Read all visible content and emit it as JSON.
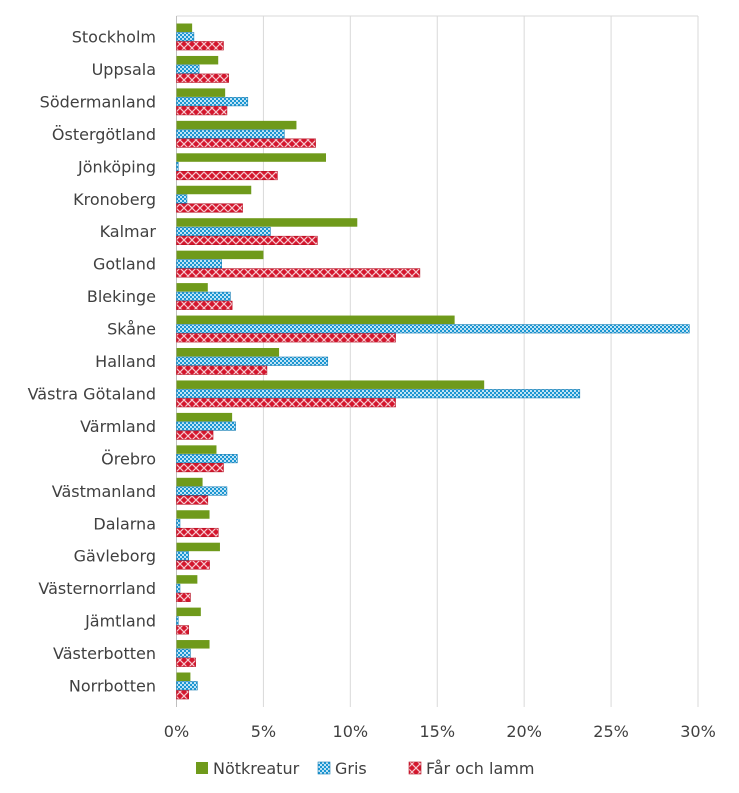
{
  "chart_data": {
    "type": "bar",
    "orientation": "horizontal",
    "title": "",
    "xlabel": "",
    "ylabel": "",
    "xlim": [
      0,
      30
    ],
    "x_ticks": [
      "0%",
      "5%",
      "10%",
      "15%",
      "20%",
      "25%",
      "30%"
    ],
    "grid": true,
    "legend_position": "bottom",
    "categories": [
      "Stockholm",
      "Uppsala",
      "Södermanland",
      "Östergötland",
      "Jönköping",
      "Kronoberg",
      "Kalmar",
      "Gotland",
      "Blekinge",
      "Skåne",
      "Halland",
      "Västra Götaland",
      "Värmland",
      "Örebro",
      "Västmanland",
      "Dalarna",
      "Gävleborg",
      "Västernorrland",
      "Jämtland",
      "Västerbotten",
      "Norrbotten"
    ],
    "series": [
      {
        "name": "Nötkreatur",
        "color": "#6f9a1b",
        "pattern": "solid",
        "values": [
          0.9,
          2.4,
          2.8,
          6.9,
          8.6,
          4.3,
          10.4,
          5.0,
          1.8,
          16.0,
          5.9,
          17.7,
          3.2,
          2.3,
          1.5,
          1.9,
          2.5,
          1.2,
          1.4,
          1.9,
          0.8
        ]
      },
      {
        "name": "Gris",
        "color": "#1b96d2",
        "pattern": "checker",
        "values": [
          1.0,
          1.3,
          4.1,
          6.2,
          0.1,
          0.6,
          5.4,
          2.6,
          3.1,
          29.5,
          8.7,
          23.2,
          3.4,
          3.5,
          2.9,
          0.2,
          0.7,
          0.2,
          0.1,
          0.8,
          1.2
        ]
      },
      {
        "name": "Får och lamm",
        "color": "#d4172e",
        "pattern": "crosshatch",
        "values": [
          2.7,
          3.0,
          2.9,
          8.0,
          5.8,
          3.8,
          8.1,
          14.0,
          3.2,
          12.6,
          5.2,
          12.6,
          2.1,
          2.7,
          1.8,
          2.4,
          1.9,
          0.8,
          0.7,
          1.1,
          0.7
        ]
      }
    ]
  }
}
